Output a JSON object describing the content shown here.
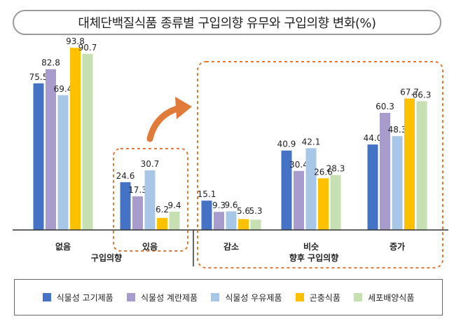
{
  "chart_data": {
    "type": "bar",
    "title": "대체단백질식품 종류별 구입의향 유무와 구입의향 변화(%)",
    "series": [
      {
        "name": "식물성 고기제품",
        "color": "#4472c4"
      },
      {
        "name": "식물성 계란제품",
        "color": "#a89ccc"
      },
      {
        "name": "식물성 우유제품",
        "color": "#a8c6e6"
      },
      {
        "name": "곤충식품",
        "color": "#ffc000"
      },
      {
        "name": "세포배양식품",
        "color": "#c6e0b4"
      }
    ],
    "groups": [
      {
        "xlabel": "구입의향",
        "categories": [
          {
            "label": "없음",
            "values": [
              75.5,
              82.8,
              69.4,
              93.8,
              90.7
            ]
          },
          {
            "label": "있음",
            "values": [
              24.6,
              17.3,
              30.7,
              6.2,
              9.4
            ]
          }
        ]
      },
      {
        "xlabel": "향후 구입의향",
        "categories": [
          {
            "label": "감소",
            "values": [
              15.1,
              9.3,
              9.6,
              5.6,
              5.3
            ]
          },
          {
            "label": "비슷",
            "values": [
              40.9,
              30.4,
              42.1,
              26.6,
              28.3
            ]
          },
          {
            "label": "증가",
            "values": [
              44.0,
              60.3,
              48.3,
              67.7,
              66.3
            ]
          }
        ]
      }
    ],
    "ylim": [
      0,
      100
    ],
    "grid": false,
    "legend": "bottom",
    "highlight_color": "#e07b39"
  }
}
